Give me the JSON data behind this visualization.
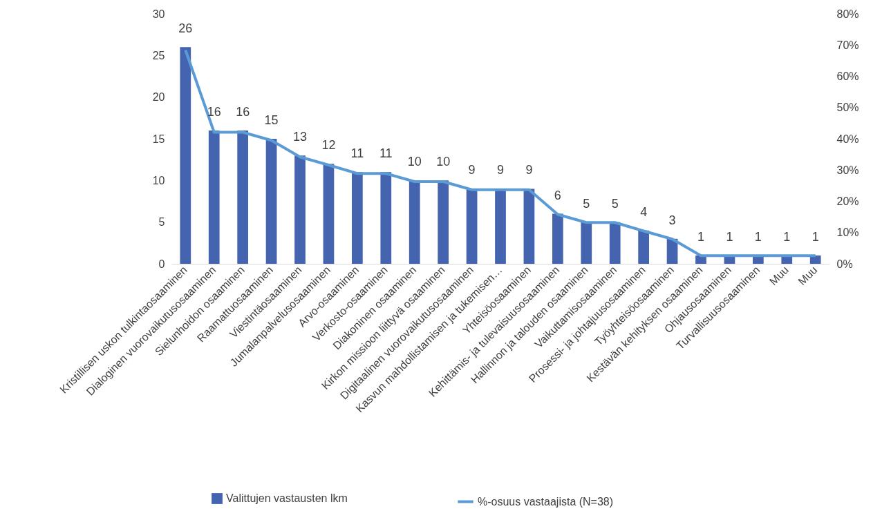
{
  "chart_data": {
    "type": "bar",
    "categories": [
      "Kristillisen uskon tulkintaosaaminen",
      "Dialoginen vuorovaikutusosaaminen",
      "Sielunhoidon osaaminen",
      "Raamattuosaaminen",
      "Viestintäosaaminen",
      "Jumalanpalvelusosaaminen",
      "Arvo-osaaminen",
      "Verkosto-osaaminen",
      "Diakoninen osaaminen",
      "Kirkon missioon liittyvä osaaminen",
      "Digitaalinen vuorovaikutusosaaminen",
      "Kasvun mahdollistamisen ja tukemisen…",
      "Yhteisöosaaminen",
      "Kehittämis- ja tulevaisuusosaaminen",
      "Hallinnon ja talouden osaaminen",
      "Vaikuttamisosaaminen",
      "Prosessi- ja johtajuusosaaminen",
      "Työyhteisöosaaminen",
      "Kestävän kehityksen osaaminen",
      "Ohjausosaaminen",
      "Turvallisuusosaaminen",
      "Muu",
      "Muu"
    ],
    "series": [
      {
        "name": "Valittujen vastausten lkm",
        "color": "#4564b0",
        "values": [
          26,
          16,
          16,
          15,
          13,
          12,
          11,
          11,
          10,
          10,
          9,
          9,
          9,
          6,
          5,
          5,
          4,
          3,
          1,
          1,
          1,
          1,
          1
        ],
        "value_labels": [
          "26",
          "16",
          "16",
          "15",
          "13",
          "12",
          "11",
          "11",
          "10",
          "10",
          "9",
          "9",
          "9",
          "6",
          "5",
          "5",
          "4",
          "3",
          "1",
          "1",
          "1",
          "1",
          "1"
        ]
      },
      {
        "name": "%-osuus vastaajista (N=38)",
        "type": "line",
        "axis": "y2",
        "color": "#5b9bd5",
        "values": [
          68.4,
          42.1,
          42.1,
          39.5,
          34.2,
          31.6,
          28.9,
          28.9,
          26.3,
          26.3,
          23.7,
          23.7,
          23.7,
          15.8,
          13.2,
          13.2,
          10.5,
          7.9,
          2.6,
          2.6,
          2.6,
          2.6,
          2.6
        ]
      }
    ],
    "ylim": [
      0,
      30
    ],
    "yticks": [
      0,
      5,
      10,
      15,
      20,
      25,
      30
    ],
    "y2lim": [
      0,
      80
    ],
    "y2ticks": [
      {
        "value": 0,
        "label": "0%"
      },
      {
        "value": 10,
        "label": "10%"
      },
      {
        "value": 20,
        "label": "20%"
      },
      {
        "value": 30,
        "label": "30%"
      },
      {
        "value": 40,
        "label": "40%"
      },
      {
        "value": 50,
        "label": "50%"
      },
      {
        "value": 60,
        "label": "60%"
      },
      {
        "value": 70,
        "label": "70%"
      },
      {
        "value": 80,
        "label": "80%"
      }
    ],
    "legend": "bottom"
  }
}
